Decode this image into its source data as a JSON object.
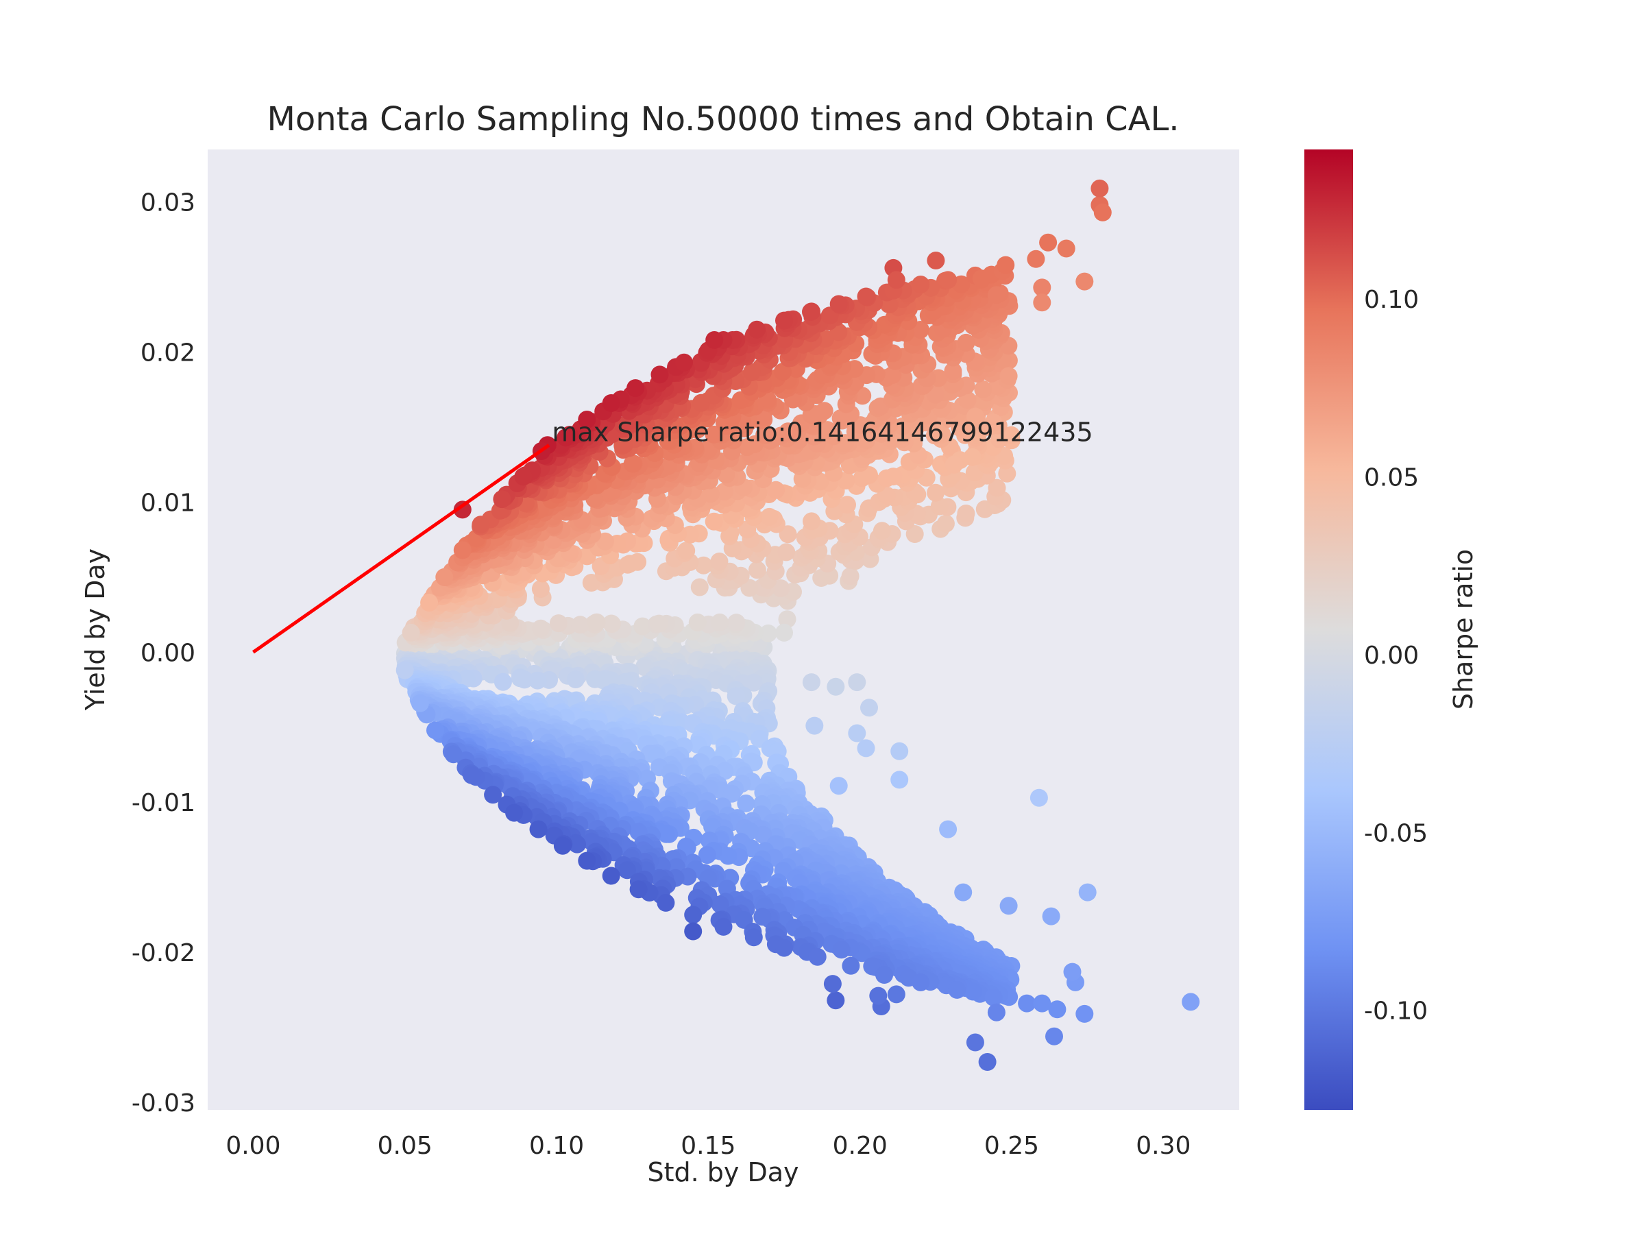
{
  "chart_data": {
    "type": "scatter",
    "title": "Monta Carlo Sampling No.50000 times and Obtain CAL.",
    "xlabel": "Std. by Day",
    "ylabel": "Yield by Day",
    "xlim": [
      -0.015,
      0.325
    ],
    "ylim": [
      -0.0305,
      0.0335
    ],
    "x_ticks": [
      0.0,
      0.05,
      0.1,
      0.15,
      0.2,
      0.25,
      0.3
    ],
    "x_tick_labels": [
      "0.00",
      "0.05",
      "0.10",
      "0.15",
      "0.20",
      "0.25",
      "0.30"
    ],
    "y_ticks": [
      -0.03,
      -0.02,
      -0.01,
      0.0,
      0.01,
      0.02,
      0.03
    ],
    "y_tick_labels": [
      "-0.03",
      "-0.02",
      "-0.01",
      "0.00",
      "0.01",
      "0.02",
      "0.03"
    ],
    "grid": false,
    "background": "#eaeaf2",
    "colormap": "coolwarm",
    "colormap_stops": [
      "#3b4cc0",
      "#6f92f3",
      "#aac7fd",
      "#dddcdc",
      "#f7b89c",
      "#e7745b",
      "#b40426"
    ],
    "colorbar": {
      "label": "Sharpe ratio",
      "range": [
        -0.128,
        0.142
      ],
      "ticks": [
        -0.1,
        -0.05,
        0.0,
        0.05,
        0.1
      ],
      "tick_labels": [
        "-0.10",
        "-0.05",
        "0.00",
        "0.05",
        "0.10"
      ]
    },
    "annotation": {
      "text": "max Sharpe ratio:0.14164146799122435",
      "x": 0.0985,
      "y": 0.0137
    },
    "cal_line": {
      "color": "#ff0000",
      "x": [
        0.0,
        0.0975
      ],
      "y": [
        0.0,
        0.0138
      ]
    },
    "series": [
      {
        "kind": "upper-frontier",
        "x": [
          0.052,
          0.058,
          0.063,
          0.069,
          0.075,
          0.082,
          0.089,
          0.096,
          0.103,
          0.11,
          0.118,
          0.126,
          0.134,
          0.142,
          0.15,
          0.158,
          0.166,
          0.175,
          0.184,
          0.193,
          0.202,
          0.211,
          0.22,
          0.229,
          0.238,
          0.247,
          0.258,
          0.268,
          0.279
        ],
        "y": [
          0.0013,
          0.0033,
          0.005,
          0.0068,
          0.0085,
          0.0102,
          0.0117,
          0.0131,
          0.0143,
          0.0155,
          0.0166,
          0.0176,
          0.0185,
          0.0193,
          0.0201,
          0.0208,
          0.0215,
          0.0221,
          0.0227,
          0.0232,
          0.0237,
          0.0241,
          0.0245,
          0.0248,
          0.0251,
          0.0254,
          0.0262,
          0.0269,
          0.0298
        ]
      },
      {
        "kind": "lower-frontier",
        "x": [
          0.05,
          0.055,
          0.06,
          0.066,
          0.072,
          0.079,
          0.086,
          0.094,
          0.102,
          0.11,
          0.118,
          0.127,
          0.136,
          0.145,
          0.155,
          0.165,
          0.175,
          0.186,
          0.197,
          0.208,
          0.22,
          0.232,
          0.244,
          0.255,
          0.265
        ],
        "y": [
          -0.0012,
          -0.0034,
          -0.0052,
          -0.0068,
          -0.0082,
          -0.0095,
          -0.0107,
          -0.0118,
          -0.0129,
          -0.0139,
          -0.0149,
          -0.0158,
          -0.0167,
          -0.0175,
          -0.0183,
          -0.019,
          -0.0197,
          -0.0203,
          -0.0209,
          -0.0215,
          -0.022,
          -0.0225,
          -0.023,
          -0.0234,
          -0.0238
        ]
      },
      {
        "kind": "outer-boundary",
        "x": [
          0.172,
          0.176,
          0.18,
          0.184,
          0.188,
          0.192,
          0.196,
          0.2,
          0.205,
          0.21,
          0.215,
          0.22,
          0.225,
          0.23,
          0.235,
          0.24,
          0.245,
          0.25,
          0.255,
          0.26,
          0.265,
          0.27,
          0.275,
          0.28
        ],
        "y": [
          0.0,
          -0.0025,
          -0.0048,
          -0.0068,
          -0.0086,
          -0.0102,
          -0.0117,
          -0.013,
          -0.0143,
          -0.0155,
          -0.0166,
          -0.0176,
          -0.0186,
          -0.0195,
          -0.0203,
          -0.0211,
          -0.0218,
          -0.0225,
          -0.0231,
          -0.0237,
          -0.0243,
          -0.0248,
          -0.0253,
          -0.0258
        ]
      },
      {
        "kind": "outliers",
        "x": [
          0.069,
          0.097,
          0.095,
          0.155,
          0.152,
          0.279,
          0.28,
          0.262,
          0.274,
          0.225,
          0.211,
          0.212,
          0.248,
          0.245,
          0.24,
          0.26,
          0.26,
          0.249,
          0.244,
          0.238,
          0.237,
          0.233,
          0.231,
          0.226,
          0.176,
          0.175,
          0.184,
          0.192,
          0.199,
          0.203,
          0.213,
          0.213,
          0.229,
          0.199,
          0.202,
          0.193,
          0.185,
          0.259,
          0.275,
          0.263,
          0.249,
          0.234,
          0.309,
          0.274,
          0.271,
          0.27,
          0.264,
          0.26,
          0.245,
          0.238,
          0.242,
          0.212,
          0.207,
          0.206,
          0.192,
          0.191,
          0.145
        ],
        "y": [
          0.0095,
          0.0138,
          0.0134,
          0.0208,
          0.0208,
          0.0309,
          0.0293,
          0.0273,
          0.0247,
          0.0261,
          0.0256,
          0.0248,
          0.0258,
          0.0238,
          0.0249,
          0.0243,
          0.0233,
          0.0184,
          0.0153,
          0.0157,
          0.013,
          0.0128,
          0.0125,
          0.0146,
          0.0022,
          0.0013,
          -0.002,
          -0.0023,
          -0.002,
          -0.0037,
          -0.0066,
          -0.0085,
          -0.0118,
          -0.0054,
          -0.0064,
          -0.0089,
          -0.0049,
          -0.0097,
          -0.016,
          -0.0176,
          -0.0169,
          -0.016,
          -0.0233,
          -0.0241,
          -0.022,
          -0.0213,
          -0.0256,
          -0.0234,
          -0.024,
          -0.026,
          -0.0273,
          -0.0228,
          -0.0236,
          -0.0229,
          -0.0232,
          -0.0221,
          -0.0186
        ]
      }
    ]
  }
}
